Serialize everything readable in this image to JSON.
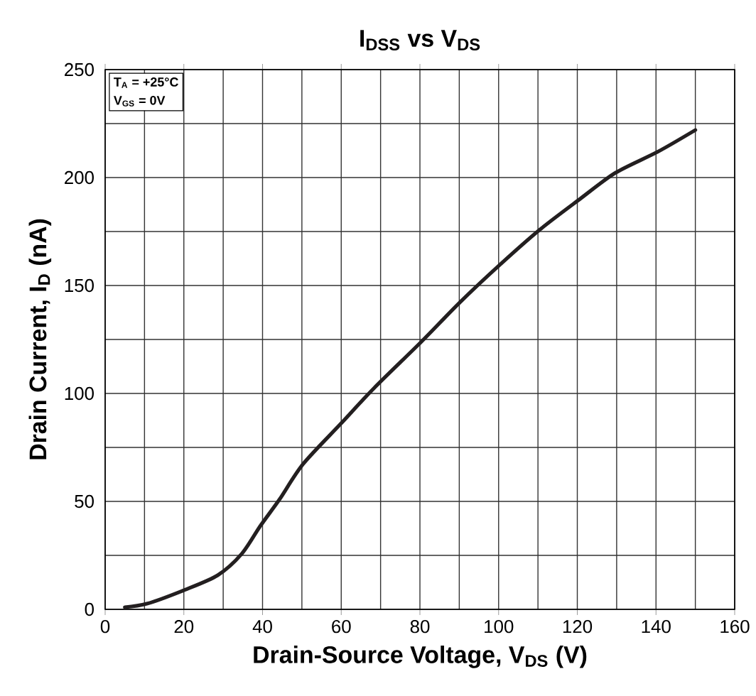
{
  "chart_data": {
    "type": "line",
    "title": "I$_{DSS}$ vs V$_{DS}$",
    "xlabel": "Drain-Source Voltage, V$_{DS}$ (V)",
    "ylabel": "Drain Current, I$_{D}$ (nA)",
    "annotations": [
      "T$_{A}$ = +25°C",
      "V$_{GS}$ = 0V"
    ],
    "xlim": [
      0,
      160
    ],
    "xticks": [
      0,
      20,
      40,
      60,
      80,
      100,
      120,
      140,
      160
    ],
    "ylim": [
      0,
      250
    ],
    "yticks": [
      0,
      50,
      100,
      150,
      200,
      250
    ],
    "grid": true,
    "legend": false,
    "marker": "none",
    "line_style": "solid",
    "series": [
      {
        "color": "#231f20",
        "x": [
          5,
          10.6,
          20.2,
          28.6,
          34.7,
          39.5,
          44.3,
          50.3,
          59.9,
          68.3,
          80.4,
          90,
          100.2,
          110.5,
          120.7,
          129.7,
          140.5,
          150
        ],
        "values": [
          1,
          2.6,
          9,
          15.8,
          25.7,
          38.8,
          50.9,
          67.3,
          86,
          102.4,
          124,
          141.9,
          159.4,
          175.9,
          190.1,
          202.2,
          212,
          222
        ]
      }
    ]
  }
}
